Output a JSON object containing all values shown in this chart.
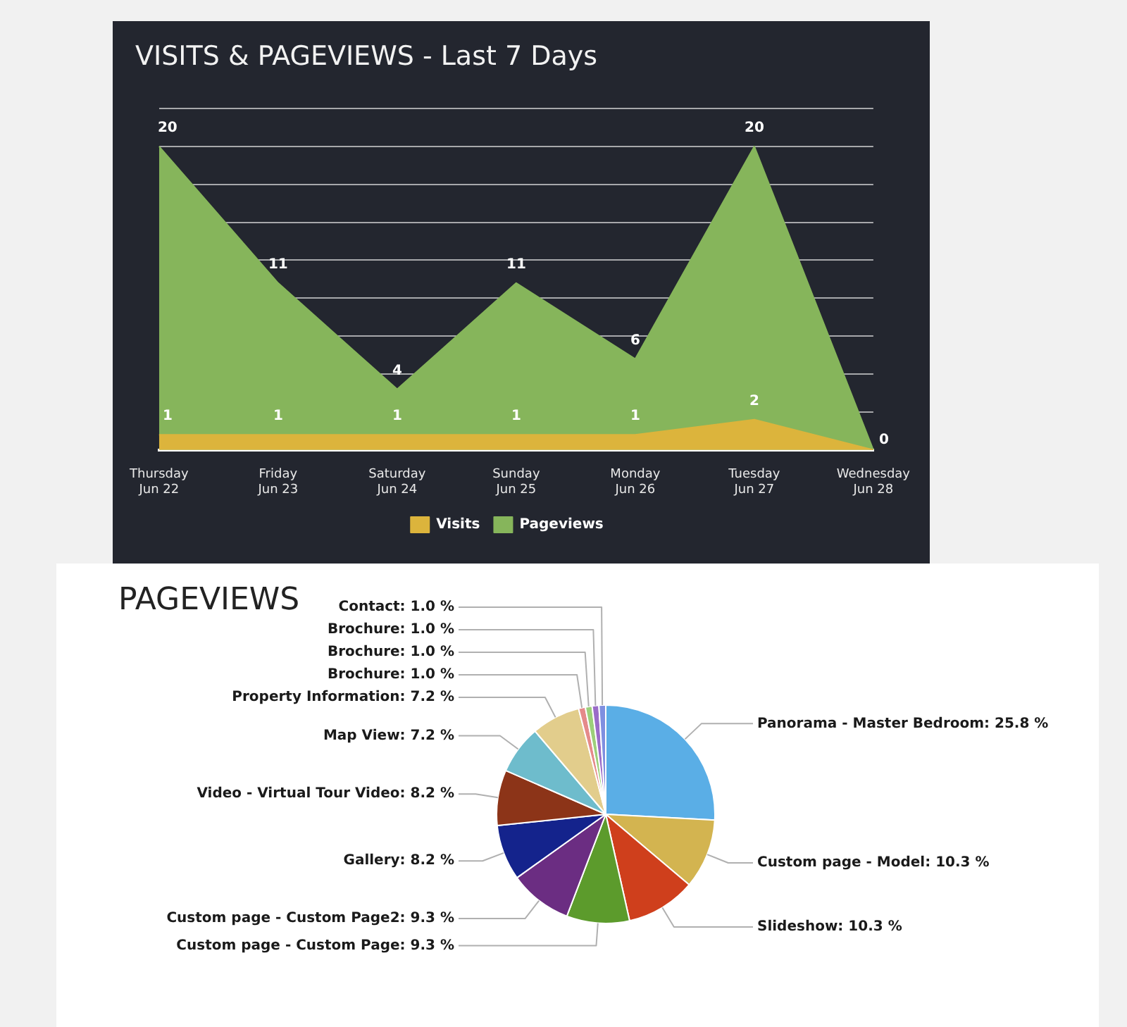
{
  "chart_data": [
    {
      "type": "area",
      "title": "VISITS & PAGEVIEWS - Last 7 Days",
      "categories": [
        "Thursday\nJun 22",
        "Friday\nJun 23",
        "Saturday\nJun 24",
        "Sunday\nJun 25",
        "Monday\nJun 26",
        "Tuesday\nJun 27",
        "Wednesday\nJun 28"
      ],
      "series": [
        {
          "name": "Visits",
          "color": "#dcb43c",
          "values": [
            1,
            1,
            1,
            1,
            1,
            2,
            0
          ],
          "value_labels": [
            "1",
            "1",
            "1",
            "1",
            "1",
            "2",
            null
          ]
        },
        {
          "name": "Pageviews",
          "color": "#86b55b",
          "values": [
            20,
            11,
            4,
            11,
            6,
            20,
            0
          ],
          "value_labels": [
            "20",
            "11",
            "4",
            "11",
            "6",
            "20",
            "0"
          ]
        }
      ],
      "ylim": [
        0,
        22.5
      ],
      "yticks": [
        {
          "value": 0,
          "label": null
        },
        {
          "value": 2.5,
          "label": null
        },
        {
          "value": 5,
          "label": null
        },
        {
          "value": 7.5,
          "label": null
        },
        {
          "value": 10,
          "label": null
        },
        {
          "value": 12.5,
          "label": null
        },
        {
          "value": 15,
          "label": null
        },
        {
          "value": 17.5,
          "label": null
        },
        {
          "value": 20,
          "label": null
        },
        {
          "value": 22.5,
          "label": null
        }
      ],
      "grid": "y",
      "legend": "bottom",
      "tick_labels": "x",
      "marker": "none"
    },
    {
      "type": "pie",
      "title": "PAGEVIEWS",
      "categories": [
        "Panorama - Master Bedroom",
        "Custom page - Model",
        "Slideshow",
        "Custom page - Custom Page",
        "Custom page - Custom Page2",
        "Gallery",
        "Video - Virtual Tour Video",
        "Map View",
        "Property Information",
        "Brochure",
        "Brochure",
        "Brochure",
        "Contact"
      ],
      "values": [
        25.8,
        10.3,
        10.3,
        9.3,
        9.3,
        8.2,
        8.2,
        7.2,
        7.2,
        1.0,
        1.0,
        1.0,
        1.0
      ],
      "colors": [
        "#5aaee6",
        "#d3b450",
        "#cf3f1c",
        "#5c9b2c",
        "#6b2d82",
        "#14238c",
        "#8c3418",
        "#6ebccc",
        "#e2cd8c",
        "#e58a8a",
        "#9ccf7a",
        "#9a6cc8",
        "#7f8fe0"
      ],
      "value_labels": [
        "25.8 %",
        "10.3 %",
        "10.3 %",
        "9.3 %",
        "9.3 %",
        "8.2 %",
        "8.2 %",
        "7.2 %",
        "7.2 %",
        "1.0 %",
        "1.0 %",
        "1.0 %",
        "1.0 %"
      ]
    }
  ]
}
